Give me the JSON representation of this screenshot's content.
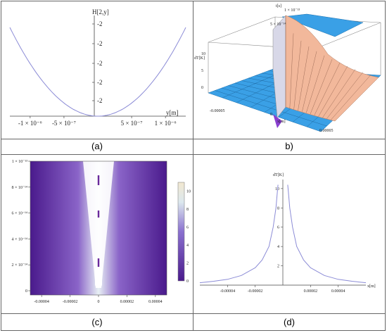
{
  "captions": {
    "a": "(a)",
    "b": "b)",
    "c": "(c)",
    "d": "(d)"
  },
  "chart_data": [
    {
      "type": "line",
      "panel": "a",
      "ylabel": "H[2,y]",
      "xlabel": "y[m]",
      "xlim": [
        -1.3e-06,
        1.3e-06
      ],
      "x_tick_labels": [
        "-1 × 10⁻⁶",
        "-5 × 10⁻⁷",
        "5 × 10⁻⁷",
        "1 × 10⁻⁶"
      ],
      "y_tick_labels": [
        "-2",
        "-2",
        "-2",
        "-2",
        "-2"
      ],
      "series": [
        {
          "x": [
            -1.3e-06,
            -1e-06,
            -5e-07,
            0,
            5e-07,
            1e-06,
            1.3e-06
          ],
          "y": [
            1.0,
            0.59,
            0.15,
            0,
            0.15,
            0.59,
            1.0
          ]
        }
      ]
    },
    {
      "type": "surface",
      "panel": "b",
      "zlabel": "dT[K]",
      "xlabel": "x[m]",
      "ylabel": "t[s]",
      "z_tick_labels": [
        "0",
        "5",
        "10"
      ],
      "x_tick_labels": [
        "-0.00005",
        "0",
        "0.00005"
      ],
      "y_tick_labels": [
        "1 × 10⁻¹³",
        "5 × 10⁻¹⁴"
      ]
    },
    {
      "type": "heatmap",
      "panel": "c",
      "xlim": [
        -4.8e-05,
        4.8e-05
      ],
      "ylim": [
        0,
        1e-13
      ],
      "x_tick_labels": [
        "-0.00004",
        "-0.00002",
        "0",
        "0.00002",
        "0.00004"
      ],
      "y_tick_labels": [
        "0",
        "2 × 10⁻¹⁴",
        "4 × 10⁻¹⁴",
        "6 × 10⁻¹⁴",
        "8 × 10⁻¹⁴",
        "1 × 10⁻¹³"
      ],
      "colorbar_tick_labels": [
        "0",
        "2",
        "4",
        "6",
        "8",
        "10"
      ],
      "colorbar_range": [
        0,
        11
      ]
    },
    {
      "type": "line",
      "panel": "d",
      "ylabel": "dT[K]",
      "xlabel": "x[m]",
      "xlim": [
        -6e-05,
        6e-05
      ],
      "ylim": [
        0,
        10.5
      ],
      "x_tick_labels": [
        "-0.00004",
        "-0.00002",
        "0.00002",
        "0.00004"
      ],
      "y_tick_labels": [
        "2",
        "4",
        "6",
        "8",
        "10"
      ],
      "series": [
        {
          "x": [
            -6e-05,
            -5e-05,
            -4e-05,
            -3e-05,
            -2e-05,
            -1.5e-05,
            -1e-05,
            -7e-06,
            -5e-06,
            -4e-06,
            -3.5e-06,
            3.5e-06,
            4e-06,
            5e-06,
            7e-06,
            1e-05,
            1.5e-05,
            2e-05,
            3e-05,
            4e-05,
            5e-05,
            6e-05
          ],
          "y": [
            0.25,
            0.4,
            0.6,
            1.0,
            1.8,
            2.6,
            4.0,
            6.0,
            8.0,
            9.6,
            10.4,
            10.4,
            9.6,
            8.0,
            6.0,
            4.0,
            2.6,
            1.8,
            1.0,
            0.6,
            0.4,
            0.25
          ]
        }
      ]
    }
  ],
  "colors": {
    "curve": "#8b8bd6",
    "surface_floor": "#3aa0e6",
    "surface_peak": "#f2b89b",
    "heat_low": "#4a1a8c",
    "heat_high": "#ffffff"
  }
}
